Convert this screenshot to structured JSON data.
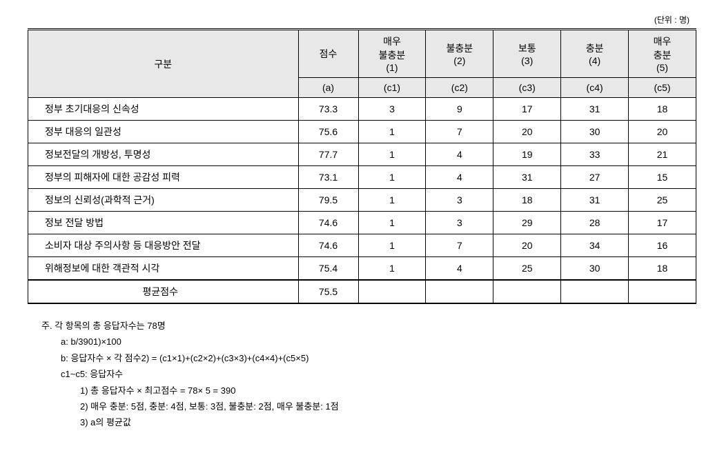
{
  "unit_label": "(단위 : 명)",
  "headers": {
    "category": "구분",
    "score": "점수",
    "very_insufficient": "매우\n불충분\n(1)",
    "insufficient": "불충분\n(2)",
    "normal": "보통\n(3)",
    "sufficient": "충분\n(4)",
    "very_sufficient": "매우\n충분\n(5)",
    "sub_a": "(a)",
    "sub_c1": "(c1)",
    "sub_c2": "(c2)",
    "sub_c3": "(c3)",
    "sub_c4": "(c4)",
    "sub_c5": "(c5)"
  },
  "rows": [
    {
      "label": "정부 초기대응의 신속성",
      "score": "73.3",
      "c1": "3",
      "c2": "9",
      "c3": "17",
      "c4": "31",
      "c5": "18"
    },
    {
      "label": "정부 대응의 일관성",
      "score": "75.6",
      "c1": "1",
      "c2": "7",
      "c3": "20",
      "c4": "30",
      "c5": "20"
    },
    {
      "label": "정보전달의 개방성, 투명성",
      "score": "77.7",
      "c1": "1",
      "c2": "4",
      "c3": "19",
      "c4": "33",
      "c5": "21"
    },
    {
      "label": "정부의 피해자에 대한 공감성 피력",
      "score": "73.1",
      "c1": "1",
      "c2": "4",
      "c3": "31",
      "c4": "27",
      "c5": "15"
    },
    {
      "label": "정보의 신뢰성(과학적 근거)",
      "score": "79.5",
      "c1": "1",
      "c2": "3",
      "c3": "18",
      "c4": "31",
      "c5": "25"
    },
    {
      "label": "정보 전달 방법",
      "score": "74.6",
      "c1": "1",
      "c2": "3",
      "c3": "29",
      "c4": "28",
      "c5": "17"
    },
    {
      "label": "소비자 대상 주의사항 등 대응방안 전달",
      "score": "74.6",
      "c1": "1",
      "c2": "7",
      "c3": "20",
      "c4": "34",
      "c5": "16"
    },
    {
      "label": "위해정보에 대한 객관적 시각",
      "score": "75.4",
      "c1": "1",
      "c2": "4",
      "c3": "25",
      "c4": "30",
      "c5": "18"
    }
  ],
  "average": {
    "label": "평균점수",
    "score": "75.5"
  },
  "notes": {
    "main": "주. 각 항목의 총 응답자수는 78명",
    "a": "a: b/3901)×100",
    "b": "b: 응답자수 × 각 점수2) = (c1×1)+(c2×2)+(c3×3)+(c4×4)+(c5×5)",
    "c": "c1~c5: 응답자수",
    "n1": "1) 총 응답자수 × 최고점수 = 78× 5 = 390",
    "n2": "2) 매우 충분: 5점, 충분: 4점, 보통: 3점, 불충분: 2점, 매우 불충분: 1점",
    "n3": "3) a의 평균값"
  }
}
